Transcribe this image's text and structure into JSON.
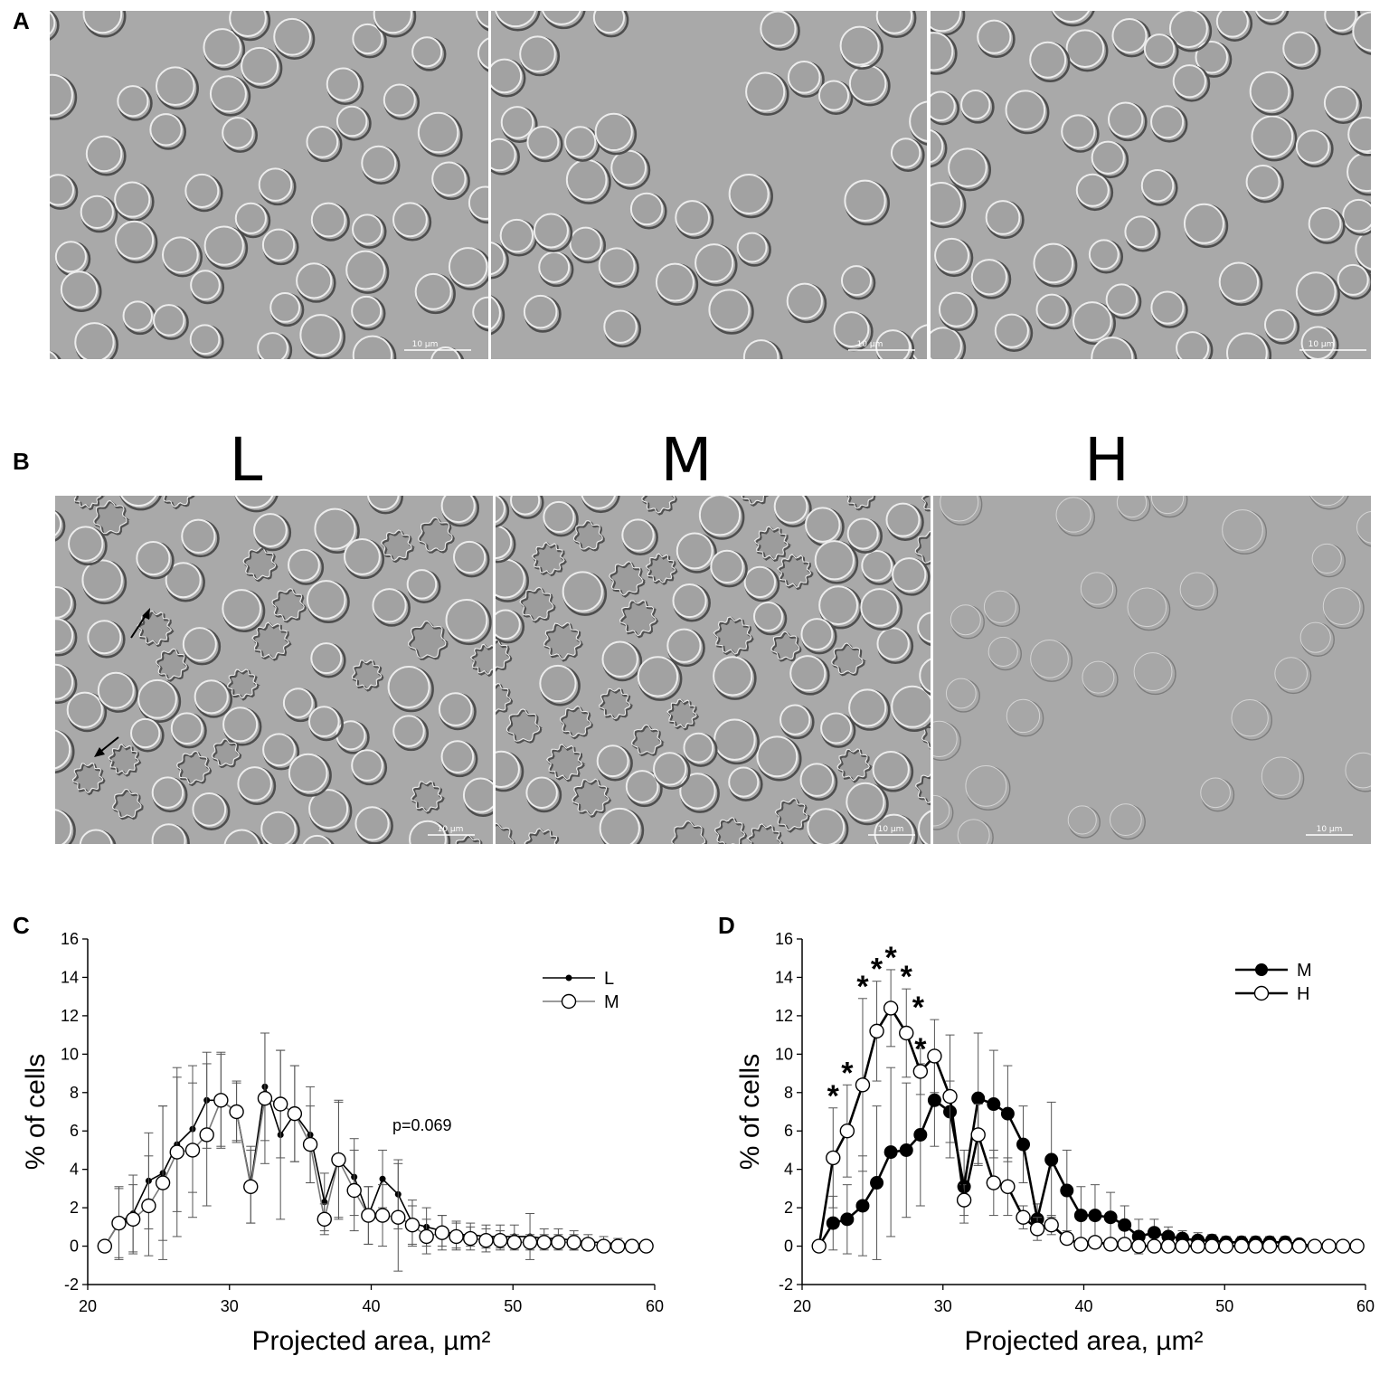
{
  "panels": {
    "a": {
      "letter": "A",
      "scale_bars": [
        "10 µm",
        "10 µm",
        "10 µm"
      ]
    },
    "b": {
      "letter": "B",
      "groups": [
        "L",
        "M",
        "H"
      ],
      "scale_bars": [
        "10 µm",
        "10 µm",
        "10 µm"
      ]
    },
    "c": {
      "letter": "C"
    },
    "d": {
      "letter": "D"
    }
  },
  "colors": {
    "field_gray": "#a9a9a9",
    "cell_rim": "#e6e6e6",
    "cell_shadow": "#555555",
    "series_black": "#000000",
    "series_gray": "#7a7a7a"
  },
  "chart_data": [
    {
      "type": "line",
      "panel": "C",
      "xlabel": "Projected area, µm²",
      "ylabel": "% of cells",
      "xlim": [
        20,
        60
      ],
      "ylim": [
        -2,
        16
      ],
      "xticks": [
        20,
        30,
        40,
        50,
        60
      ],
      "yticks": [
        -2,
        0,
        2,
        4,
        6,
        8,
        10,
        12,
        14,
        16
      ],
      "legend_position": "top-right",
      "annotations": [
        {
          "text": "p=0.069",
          "x": 41.5,
          "y": 6.0
        }
      ],
      "series": [
        {
          "name": "L",
          "marker": "small-filled",
          "line": "black",
          "x": [
            21.2,
            22.2,
            23.2,
            24.3,
            25.3,
            26.3,
            27.4,
            28.4,
            29.4,
            30.5,
            31.5,
            32.5,
            33.6,
            34.6,
            35.7,
            36.7,
            37.7,
            38.8,
            39.8,
            40.8,
            41.9,
            42.9,
            43.9,
            45.0,
            46.0,
            47.0,
            48.1,
            49.1,
            50.1,
            51.2,
            52.2,
            53.2,
            54.3,
            55.3,
            56.4,
            57.4,
            58.4,
            59.4
          ],
          "y": [
            0,
            1.2,
            1.7,
            3.4,
            3.8,
            5.3,
            6.1,
            7.6,
            7.6,
            7.0,
            3.2,
            8.3,
            5.8,
            6.9,
            5.8,
            2.3,
            4.5,
            3.6,
            1.6,
            3.5,
            2.7,
            1.2,
            1.0,
            0.8,
            0.6,
            0.6,
            0.5,
            0.5,
            0.5,
            0.5,
            0.4,
            0.4,
            0.3,
            0.2,
            0.2,
            0.1,
            0.1,
            0.1
          ],
          "err": [
            0,
            1.8,
            2.0,
            2.5,
            3.5,
            3.5,
            3.3,
            2.5,
            2.5,
            1.5,
            2.0,
            2.8,
            4.4,
            2.5,
            2.5,
            1.5,
            3.1,
            2.0,
            1.5,
            1.5,
            1.8,
            1.2,
            1.0,
            0.8,
            0.7,
            0.6,
            0.6,
            0.6,
            0.6,
            1.2,
            0.5,
            0.5,
            0.5,
            0.4,
            0.3,
            0.3,
            0.2,
            0.2
          ]
        },
        {
          "name": "M",
          "marker": "open-circle",
          "line": "gray",
          "x": [
            21.2,
            22.2,
            23.2,
            24.3,
            25.3,
            26.3,
            27.4,
            28.4,
            29.4,
            30.5,
            31.5,
            32.5,
            33.6,
            34.6,
            35.7,
            36.7,
            37.7,
            38.8,
            39.8,
            40.8,
            41.9,
            42.9,
            43.9,
            45.0,
            46.0,
            47.0,
            48.1,
            49.1,
            50.1,
            51.2,
            52.2,
            53.2,
            54.3,
            55.3,
            56.4,
            57.4,
            58.4,
            59.4
          ],
          "y": [
            0,
            1.2,
            1.4,
            2.1,
            3.3,
            4.9,
            5.0,
            5.8,
            7.6,
            7.0,
            3.1,
            7.7,
            7.4,
            6.9,
            5.3,
            1.4,
            4.5,
            2.9,
            1.6,
            1.6,
            1.5,
            1.1,
            0.5,
            0.7,
            0.5,
            0.4,
            0.3,
            0.3,
            0.2,
            0.2,
            0.2,
            0.2,
            0.2,
            0.1,
            0.0,
            0.0,
            0.0,
            0.0
          ],
          "err": [
            0,
            1.9,
            1.8,
            2.6,
            4.0,
            4.4,
            3.5,
            3.7,
            2.4,
            1.6,
            1.9,
            3.4,
            2.8,
            2.5,
            2.0,
            0.8,
            3.0,
            2.1,
            1.5,
            1.6,
            2.8,
            1.0,
            0.9,
            0.9,
            0.7,
            0.6,
            0.6,
            0.5,
            0.4,
            0.4,
            0.4,
            0.4,
            0.4,
            0.3,
            0.2,
            0.2,
            0.2,
            0.2
          ]
        }
      ]
    },
    {
      "type": "line",
      "panel": "D",
      "xlabel": "Projected area, µm²",
      "ylabel": "% of cells",
      "xlim": [
        20,
        60
      ],
      "ylim": [
        -2,
        16
      ],
      "xticks": [
        20,
        30,
        40,
        50,
        60
      ],
      "yticks": [
        -2,
        0,
        2,
        4,
        6,
        8,
        10,
        12,
        14,
        16
      ],
      "legend_position": "top-right",
      "significance_marker": "*",
      "series": [
        {
          "name": "M",
          "marker": "filled-circle",
          "line": "black",
          "x": [
            21.2,
            22.2,
            23.2,
            24.3,
            25.3,
            26.3,
            27.4,
            28.4,
            29.4,
            30.5,
            31.5,
            32.5,
            33.6,
            34.6,
            35.7,
            36.7,
            37.7,
            38.8,
            39.8,
            40.8,
            41.9,
            42.9,
            43.9,
            45.0,
            46.0,
            47.0,
            48.1,
            49.1,
            50.1,
            51.2,
            52.2,
            53.2,
            54.3,
            55.3,
            56.4,
            57.4,
            58.4,
            59.4
          ],
          "y": [
            0,
            1.2,
            1.4,
            2.1,
            3.3,
            4.9,
            5.0,
            5.8,
            7.6,
            7.0,
            3.1,
            7.7,
            7.4,
            6.9,
            5.3,
            1.4,
            4.5,
            2.9,
            1.6,
            1.6,
            1.5,
            1.1,
            0.5,
            0.7,
            0.5,
            0.4,
            0.3,
            0.3,
            0.2,
            0.2,
            0.2,
            0.2,
            0.2,
            0.1,
            0.0,
            0.0,
            0.0,
            0.0
          ],
          "err": [
            0,
            1.4,
            1.8,
            2.6,
            4.0,
            4.4,
            3.5,
            3.7,
            2.4,
            1.6,
            1.9,
            3.4,
            2.8,
            2.5,
            2.0,
            0.8,
            3.0,
            2.1,
            1.5,
            1.6,
            1.3,
            1.0,
            0.9,
            0.7,
            0.5,
            0.4,
            0.4,
            0.3,
            0.3,
            0.3,
            0.3,
            0.3,
            0.3,
            0.2,
            0.2,
            0.2,
            0.2,
            0.2
          ]
        },
        {
          "name": "H",
          "marker": "open-circle",
          "line": "black",
          "x": [
            21.2,
            22.2,
            23.2,
            24.3,
            25.3,
            26.3,
            27.4,
            28.4,
            29.4,
            30.5,
            31.5,
            32.5,
            33.6,
            34.6,
            35.7,
            36.7,
            37.7,
            38.8,
            39.8,
            40.8,
            41.9,
            42.9,
            43.9,
            45.0,
            46.0,
            47.0,
            48.1,
            49.1,
            50.1,
            51.2,
            52.2,
            53.2,
            54.3,
            55.3,
            56.4,
            57.4,
            58.4,
            59.4
          ],
          "y": [
            0,
            4.6,
            6.0,
            8.4,
            11.2,
            12.4,
            11.1,
            9.1,
            9.9,
            7.8,
            2.4,
            5.8,
            3.3,
            3.1,
            1.5,
            0.9,
            1.1,
            0.4,
            0.1,
            0.2,
            0.1,
            0.1,
            0.0,
            0.0,
            0.0,
            0.0,
            0.0,
            0.0,
            0.0,
            0.0,
            0.0,
            0.0,
            0.0,
            0.0,
            0.0,
            0.0,
            0.0,
            0.0
          ],
          "err": [
            0,
            2.6,
            2.4,
            4.5,
            2.6,
            2.0,
            2.3,
            1.2,
            1.9,
            3.2,
            0.8,
            1.6,
            1.7,
            1.5,
            0.6,
            0.6,
            0.5,
            0.3,
            0.2,
            0.2,
            0.2,
            0.1,
            0.1,
            0.1,
            0.1,
            0.1,
            0.1,
            0.1,
            0.1,
            0.1,
            0.1,
            0.1,
            0.1,
            0.1,
            0.1,
            0.1,
            0.1,
            0.1
          ],
          "significant": [
            false,
            true,
            true,
            true,
            true,
            true,
            true,
            true,
            true,
            false,
            false,
            false,
            false,
            false,
            false,
            false,
            false,
            false,
            false,
            false,
            false,
            false,
            false,
            false,
            false,
            false,
            false,
            false,
            false,
            false,
            false,
            false,
            false,
            false,
            false,
            false,
            false,
            false
          ]
        }
      ]
    }
  ]
}
